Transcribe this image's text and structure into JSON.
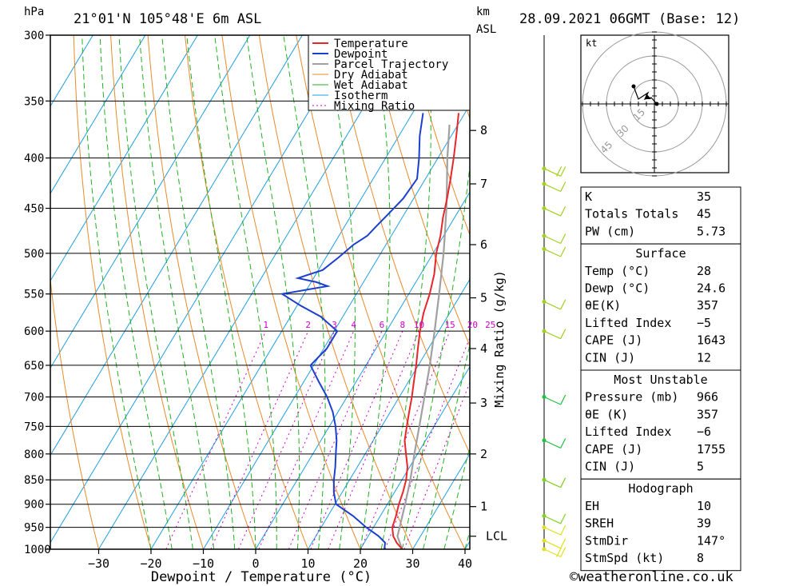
{
  "header": {
    "hpa_unit": "hPa",
    "location": "21°01'N  105°48'E  6m  ASL",
    "km_unit": "km",
    "asl_label": "ASL",
    "date": "28.09.2021  06GMT  (Base: 12)"
  },
  "chart_data": {
    "type": "skew-t",
    "xlabel": "Dewpoint / Temperature (°C)",
    "ylabel_right": "Mixing Ratio (g/kg)",
    "pressure_ticks": [
      "300",
      "350",
      "400",
      "450",
      "500",
      "550",
      "600",
      "650",
      "700",
      "750",
      "800",
      "850",
      "900",
      "950",
      "1000"
    ],
    "pressure_values": [
      300,
      350,
      400,
      450,
      500,
      550,
      600,
      650,
      700,
      750,
      800,
      850,
      900,
      950,
      1000
    ],
    "temp_ticks": [
      "−30",
      "−20",
      "−10",
      "0",
      "10",
      "20",
      "30",
      "40"
    ],
    "temp_values": [
      -30,
      -20,
      -10,
      0,
      10,
      20,
      30,
      40
    ],
    "km_ticks": [
      "8",
      "7",
      "6",
      "5",
      "4",
      "3",
      "2",
      "1",
      "LCL"
    ],
    "km_pressures": [
      375,
      425,
      490,
      555,
      625,
      710,
      800,
      905,
      970
    ],
    "mixing_ratio_labels": [
      "1",
      "2",
      "3",
      "4",
      "6",
      "8",
      "10",
      "15",
      "20",
      "25"
    ],
    "mixing_ratio_values": [
      1,
      2,
      3,
      4,
      6,
      8,
      10,
      15,
      20,
      25
    ],
    "legend": [
      "Temperature",
      "Dewpoint",
      "Parcel Trajectory",
      "Dry Adiabat",
      "Wet Adiabat",
      "Isotherm",
      "Mixing Ratio"
    ],
    "colors": {
      "temperature": "#e8262a",
      "dewpoint": "#1c3fd0",
      "parcel": "#a0a0a0",
      "dry_adiabat": "#e88a2a",
      "wet_adiabat": "#22b022",
      "isotherm": "#1e9ee0",
      "mixing_ratio": "#cc00cc"
    },
    "temperature_profile": {
      "pressure": [
        1000,
        985,
        970,
        950,
        925,
        900,
        875,
        850,
        825,
        800,
        775,
        750,
        725,
        700,
        675,
        650,
        625,
        600,
        575,
        550,
        525,
        500,
        480,
        460,
        440,
        420,
        400,
        380,
        360
      ],
      "temp": [
        28,
        26.2,
        24.8,
        23.6,
        23,
        22.2,
        21.6,
        20.8,
        19.6,
        17.8,
        16,
        14.8,
        13.6,
        12.4,
        11,
        9.6,
        8,
        6.4,
        5,
        4,
        2.6,
        0.6,
        -0.6,
        -2.2,
        -3.6,
        -5.2,
        -7,
        -9,
        -11.2
      ]
    },
    "dewpoint_profile": {
      "pressure": [
        1000,
        985,
        970,
        950,
        925,
        900,
        875,
        850,
        825,
        800,
        775,
        750,
        725,
        700,
        675,
        650,
        625,
        600,
        590,
        580,
        565,
        550,
        540,
        535,
        530,
        520,
        505,
        490,
        480,
        470,
        455,
        440,
        420,
        400,
        380,
        360
      ],
      "dewpt": [
        24.6,
        24,
        22,
        18.6,
        14.8,
        10.2,
        8.4,
        7,
        5.8,
        4.4,
        3,
        1.2,
        -1,
        -3.8,
        -7.2,
        -10.6,
        -9.4,
        -9.4,
        -11.8,
        -14.2,
        -19.4,
        -24.2,
        -16.4,
        -19,
        -23,
        -19.2,
        -17.6,
        -16.2,
        -14.6,
        -14,
        -13,
        -12,
        -11.6,
        -13.6,
        -16,
        -18
      ]
    },
    "parcel_profile": {
      "pressure": [
        1000,
        970,
        950,
        900,
        850,
        800,
        750,
        700,
        650,
        600,
        550,
        500,
        450,
        400,
        370
      ],
      "temp": [
        28,
        25.6,
        25,
        23.4,
        21.6,
        19.4,
        17.2,
        14.8,
        12.2,
        9.2,
        5.8,
        2,
        -2.6,
        -8.2,
        -11.6
      ]
    },
    "wind_profile": {
      "pressure": [
        1000,
        980,
        950,
        925,
        850,
        775,
        700,
        600,
        560,
        495,
        480,
        450,
        425,
        410
      ],
      "speed_kt": [
        15,
        12,
        10,
        8,
        6,
        5,
        8,
        10,
        10,
        8,
        10,
        12,
        10,
        15
      ]
    },
    "hodograph": {
      "unit": "kt",
      "ring_labels": [
        "15",
        "30",
        "45"
      ]
    }
  },
  "indices": {
    "basic": [
      {
        "label": "K",
        "value": "35"
      },
      {
        "label": "Totals Totals",
        "value": "45"
      },
      {
        "label": "PW (cm)",
        "value": "5.73"
      }
    ],
    "surface": {
      "title": "Surface",
      "rows": [
        {
          "label": "Temp (°C)",
          "value": "28"
        },
        {
          "label": "Dewp (°C)",
          "value": "24.6"
        },
        {
          "label": "θE(K)",
          "value": "357"
        },
        {
          "label": "Lifted Index",
          "value": "−5"
        },
        {
          "label": "CAPE (J)",
          "value": "1643"
        },
        {
          "label": "CIN (J)",
          "value": "12"
        }
      ]
    },
    "unstable": {
      "title": "Most Unstable",
      "rows": [
        {
          "label": "Pressure (mb)",
          "value": "966"
        },
        {
          "label": "θE (K)",
          "value": "357"
        },
        {
          "label": "Lifted Index",
          "value": "−6"
        },
        {
          "label": "CAPE (J)",
          "value": "1755"
        },
        {
          "label": "CIN (J)",
          "value": "5"
        }
      ]
    },
    "hodograph": {
      "title": "Hodograph",
      "rows": [
        {
          "label": "EH",
          "value": "10"
        },
        {
          "label": "SREH",
          "value": "39"
        },
        {
          "label": "StmDir",
          "value": "147°"
        },
        {
          "label": "StmSpd (kt)",
          "value": "8"
        }
      ]
    }
  },
  "footer": {
    "copyright": "©weatheronline.co.uk"
  }
}
